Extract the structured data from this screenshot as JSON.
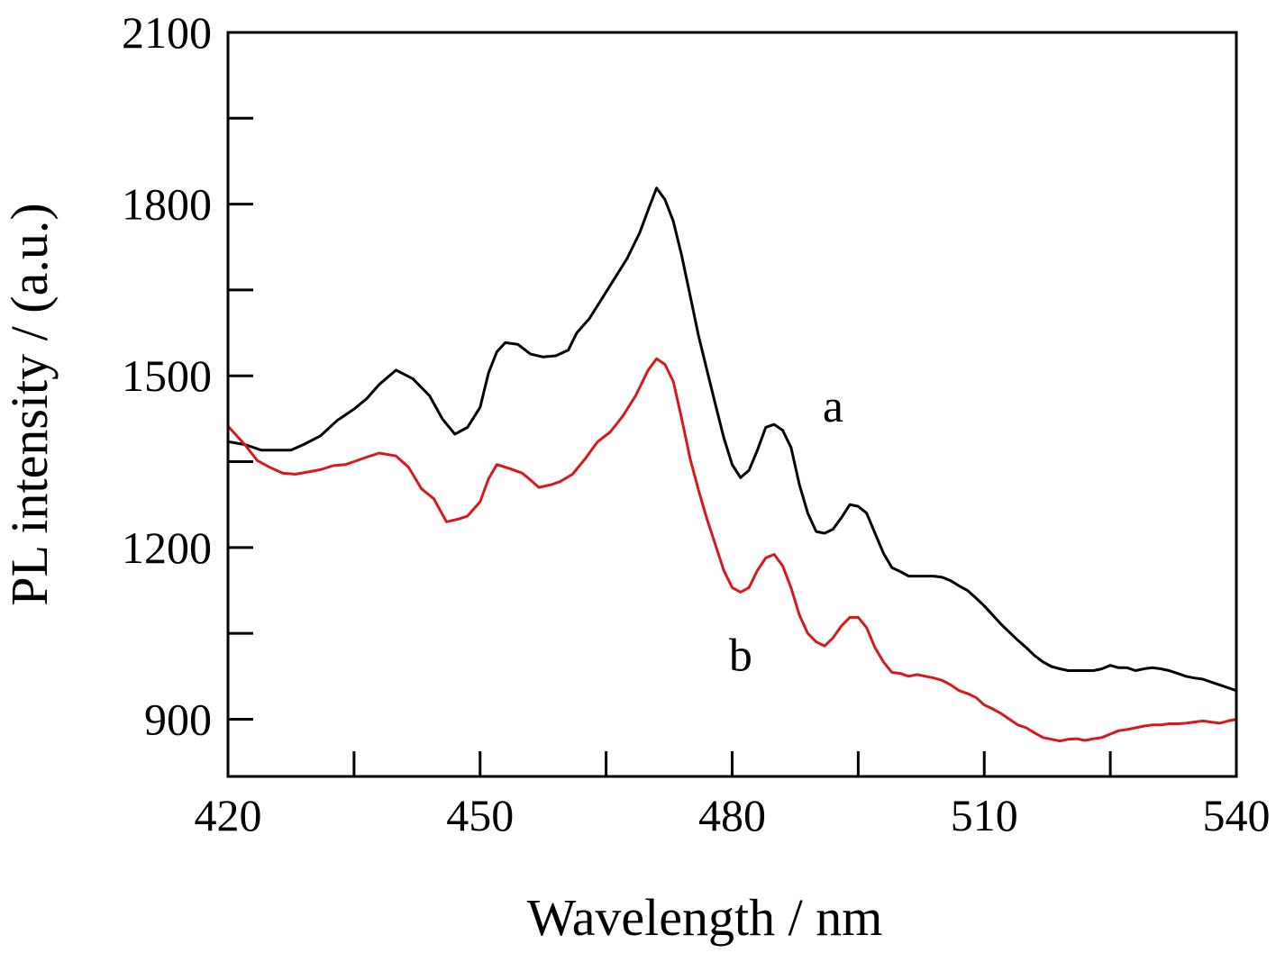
{
  "chart_data": {
    "type": "line",
    "title": "",
    "xlabel": "Wavelength / nm",
    "ylabel": "PL intensity / (a.u.)",
    "xlim": [
      420,
      540
    ],
    "ylim": [
      800,
      2100
    ],
    "x_ticks": [
      420,
      450,
      480,
      510,
      540
    ],
    "x_minor_ticks": [
      435,
      465,
      495,
      525
    ],
    "y_ticks": [
      900,
      1200,
      1500,
      1800,
      2100
    ],
    "y_minor_ticks": [
      1050,
      1350,
      1650,
      1950
    ],
    "grid": false,
    "legend": "none",
    "series": [
      {
        "name": "a",
        "color": "#000000",
        "label_at": [
          492,
          1420
        ],
        "points": [
          [
            420,
            1385
          ],
          [
            422,
            1380
          ],
          [
            424,
            1370
          ],
          [
            426,
            1370
          ],
          [
            427.5,
            1370
          ],
          [
            429,
            1380
          ],
          [
            431,
            1395
          ],
          [
            433,
            1422
          ],
          [
            435,
            1442
          ],
          [
            436.5,
            1460
          ],
          [
            438,
            1485
          ],
          [
            440,
            1510
          ],
          [
            442,
            1495
          ],
          [
            444,
            1465
          ],
          [
            445.5,
            1425
          ],
          [
            447,
            1398
          ],
          [
            448.5,
            1410
          ],
          [
            450,
            1445
          ],
          [
            451,
            1505
          ],
          [
            452,
            1542
          ],
          [
            453,
            1558
          ],
          [
            454.5,
            1555
          ],
          [
            456,
            1538
          ],
          [
            457.5,
            1533
          ],
          [
            459,
            1535
          ],
          [
            460.5,
            1545
          ],
          [
            461.5,
            1575
          ],
          [
            463,
            1600
          ],
          [
            464.5,
            1635
          ],
          [
            466,
            1670
          ],
          [
            467.5,
            1705
          ],
          [
            469,
            1750
          ],
          [
            470,
            1790
          ],
          [
            471,
            1828
          ],
          [
            472,
            1808
          ],
          [
            473,
            1770
          ],
          [
            474,
            1710
          ],
          [
            475,
            1640
          ],
          [
            476,
            1570
          ],
          [
            477,
            1510
          ],
          [
            478,
            1450
          ],
          [
            479,
            1392
          ],
          [
            480,
            1345
          ],
          [
            481,
            1322
          ],
          [
            482,
            1335
          ],
          [
            483,
            1370
          ],
          [
            484,
            1410
          ],
          [
            485,
            1415
          ],
          [
            486,
            1405
          ],
          [
            487,
            1375
          ],
          [
            488,
            1310
          ],
          [
            489,
            1260
          ],
          [
            490,
            1228
          ],
          [
            491,
            1225
          ],
          [
            492,
            1232
          ],
          [
            493,
            1252
          ],
          [
            494,
            1275
          ],
          [
            495,
            1272
          ],
          [
            496,
            1260
          ],
          [
            497,
            1225
          ],
          [
            498,
            1190
          ],
          [
            499,
            1165
          ],
          [
            500,
            1158
          ],
          [
            501,
            1150
          ],
          [
            502,
            1150
          ],
          [
            503,
            1150
          ],
          [
            504,
            1150
          ],
          [
            505,
            1148
          ],
          [
            506,
            1142
          ],
          [
            507,
            1133
          ],
          [
            508,
            1125
          ],
          [
            509,
            1112
          ],
          [
            510,
            1098
          ],
          [
            511,
            1082
          ],
          [
            512,
            1066
          ],
          [
            513,
            1052
          ],
          [
            514,
            1038
          ],
          [
            515,
            1025
          ],
          [
            516,
            1011
          ],
          [
            517,
            1000
          ],
          [
            518,
            992
          ],
          [
            519,
            988
          ],
          [
            520,
            985
          ],
          [
            521,
            985
          ],
          [
            522,
            985
          ],
          [
            523,
            985
          ],
          [
            524,
            988
          ],
          [
            525,
            994
          ],
          [
            526,
            990
          ],
          [
            527,
            990
          ],
          [
            528,
            985
          ],
          [
            529,
            988
          ],
          [
            530,
            990
          ],
          [
            531,
            988
          ],
          [
            532,
            985
          ],
          [
            533,
            980
          ],
          [
            534,
            975
          ],
          [
            535,
            972
          ],
          [
            536,
            970
          ],
          [
            537,
            965
          ],
          [
            538,
            960
          ],
          [
            539,
            955
          ],
          [
            540,
            950
          ]
        ]
      },
      {
        "name": "b",
        "color": "#d7191c",
        "label_at": [
          481,
          985
        ],
        "points": [
          [
            420,
            1412
          ],
          [
            422,
            1380
          ],
          [
            423.5,
            1352
          ],
          [
            425,
            1340
          ],
          [
            426.5,
            1330
          ],
          [
            428,
            1328
          ],
          [
            429.5,
            1332
          ],
          [
            431,
            1336
          ],
          [
            432.5,
            1343
          ],
          [
            434,
            1345
          ],
          [
            435,
            1350
          ],
          [
            436.5,
            1358
          ],
          [
            438,
            1365
          ],
          [
            440,
            1360
          ],
          [
            441.5,
            1340
          ],
          [
            443,
            1303
          ],
          [
            444.5,
            1285
          ],
          [
            446,
            1245
          ],
          [
            447.5,
            1250
          ],
          [
            448.5,
            1255
          ],
          [
            450,
            1280
          ],
          [
            451,
            1320
          ],
          [
            452,
            1345
          ],
          [
            453.5,
            1338
          ],
          [
            455,
            1330
          ],
          [
            456,
            1318
          ],
          [
            457,
            1305
          ],
          [
            458.5,
            1310
          ],
          [
            459.5,
            1315
          ],
          [
            461,
            1328
          ],
          [
            462.5,
            1355
          ],
          [
            464,
            1385
          ],
          [
            465.5,
            1402
          ],
          [
            467,
            1430
          ],
          [
            468.5,
            1465
          ],
          [
            470,
            1510
          ],
          [
            471,
            1530
          ],
          [
            472,
            1520
          ],
          [
            473,
            1490
          ],
          [
            474,
            1425
          ],
          [
            475,
            1355
          ],
          [
            476,
            1300
          ],
          [
            477,
            1250
          ],
          [
            478,
            1205
          ],
          [
            479,
            1160
          ],
          [
            480,
            1130
          ],
          [
            481,
            1122
          ],
          [
            482,
            1130
          ],
          [
            483,
            1160
          ],
          [
            484,
            1182
          ],
          [
            485,
            1188
          ],
          [
            486,
            1168
          ],
          [
            487,
            1130
          ],
          [
            488,
            1082
          ],
          [
            489,
            1050
          ],
          [
            490,
            1035
          ],
          [
            491,
            1028
          ],
          [
            492,
            1042
          ],
          [
            493,
            1063
          ],
          [
            494,
            1078
          ],
          [
            495,
            1078
          ],
          [
            496,
            1060
          ],
          [
            497,
            1025
          ],
          [
            498,
            1000
          ],
          [
            499,
            982
          ],
          [
            500,
            980
          ],
          [
            501,
            975
          ],
          [
            502,
            978
          ],
          [
            503,
            975
          ],
          [
            504,
            972
          ],
          [
            505,
            968
          ],
          [
            506,
            960
          ],
          [
            507,
            950
          ],
          [
            508,
            945
          ],
          [
            509,
            938
          ],
          [
            510,
            925
          ],
          [
            511,
            918
          ],
          [
            512,
            910
          ],
          [
            513,
            900
          ],
          [
            514,
            890
          ],
          [
            515,
            885
          ],
          [
            516,
            876
          ],
          [
            517,
            868
          ],
          [
            518,
            865
          ],
          [
            519,
            862
          ],
          [
            520,
            865
          ],
          [
            521,
            866
          ],
          [
            522,
            863
          ],
          [
            523,
            866
          ],
          [
            524,
            868
          ],
          [
            525,
            874
          ],
          [
            526,
            880
          ],
          [
            527,
            882
          ],
          [
            528,
            885
          ],
          [
            529,
            888
          ],
          [
            530,
            890
          ],
          [
            531,
            890
          ],
          [
            532,
            892
          ],
          [
            533,
            892
          ],
          [
            534,
            893
          ],
          [
            535,
            895
          ],
          [
            536,
            897
          ],
          [
            537,
            895
          ],
          [
            538,
            893
          ],
          [
            539,
            897
          ],
          [
            540,
            900
          ]
        ]
      }
    ]
  }
}
